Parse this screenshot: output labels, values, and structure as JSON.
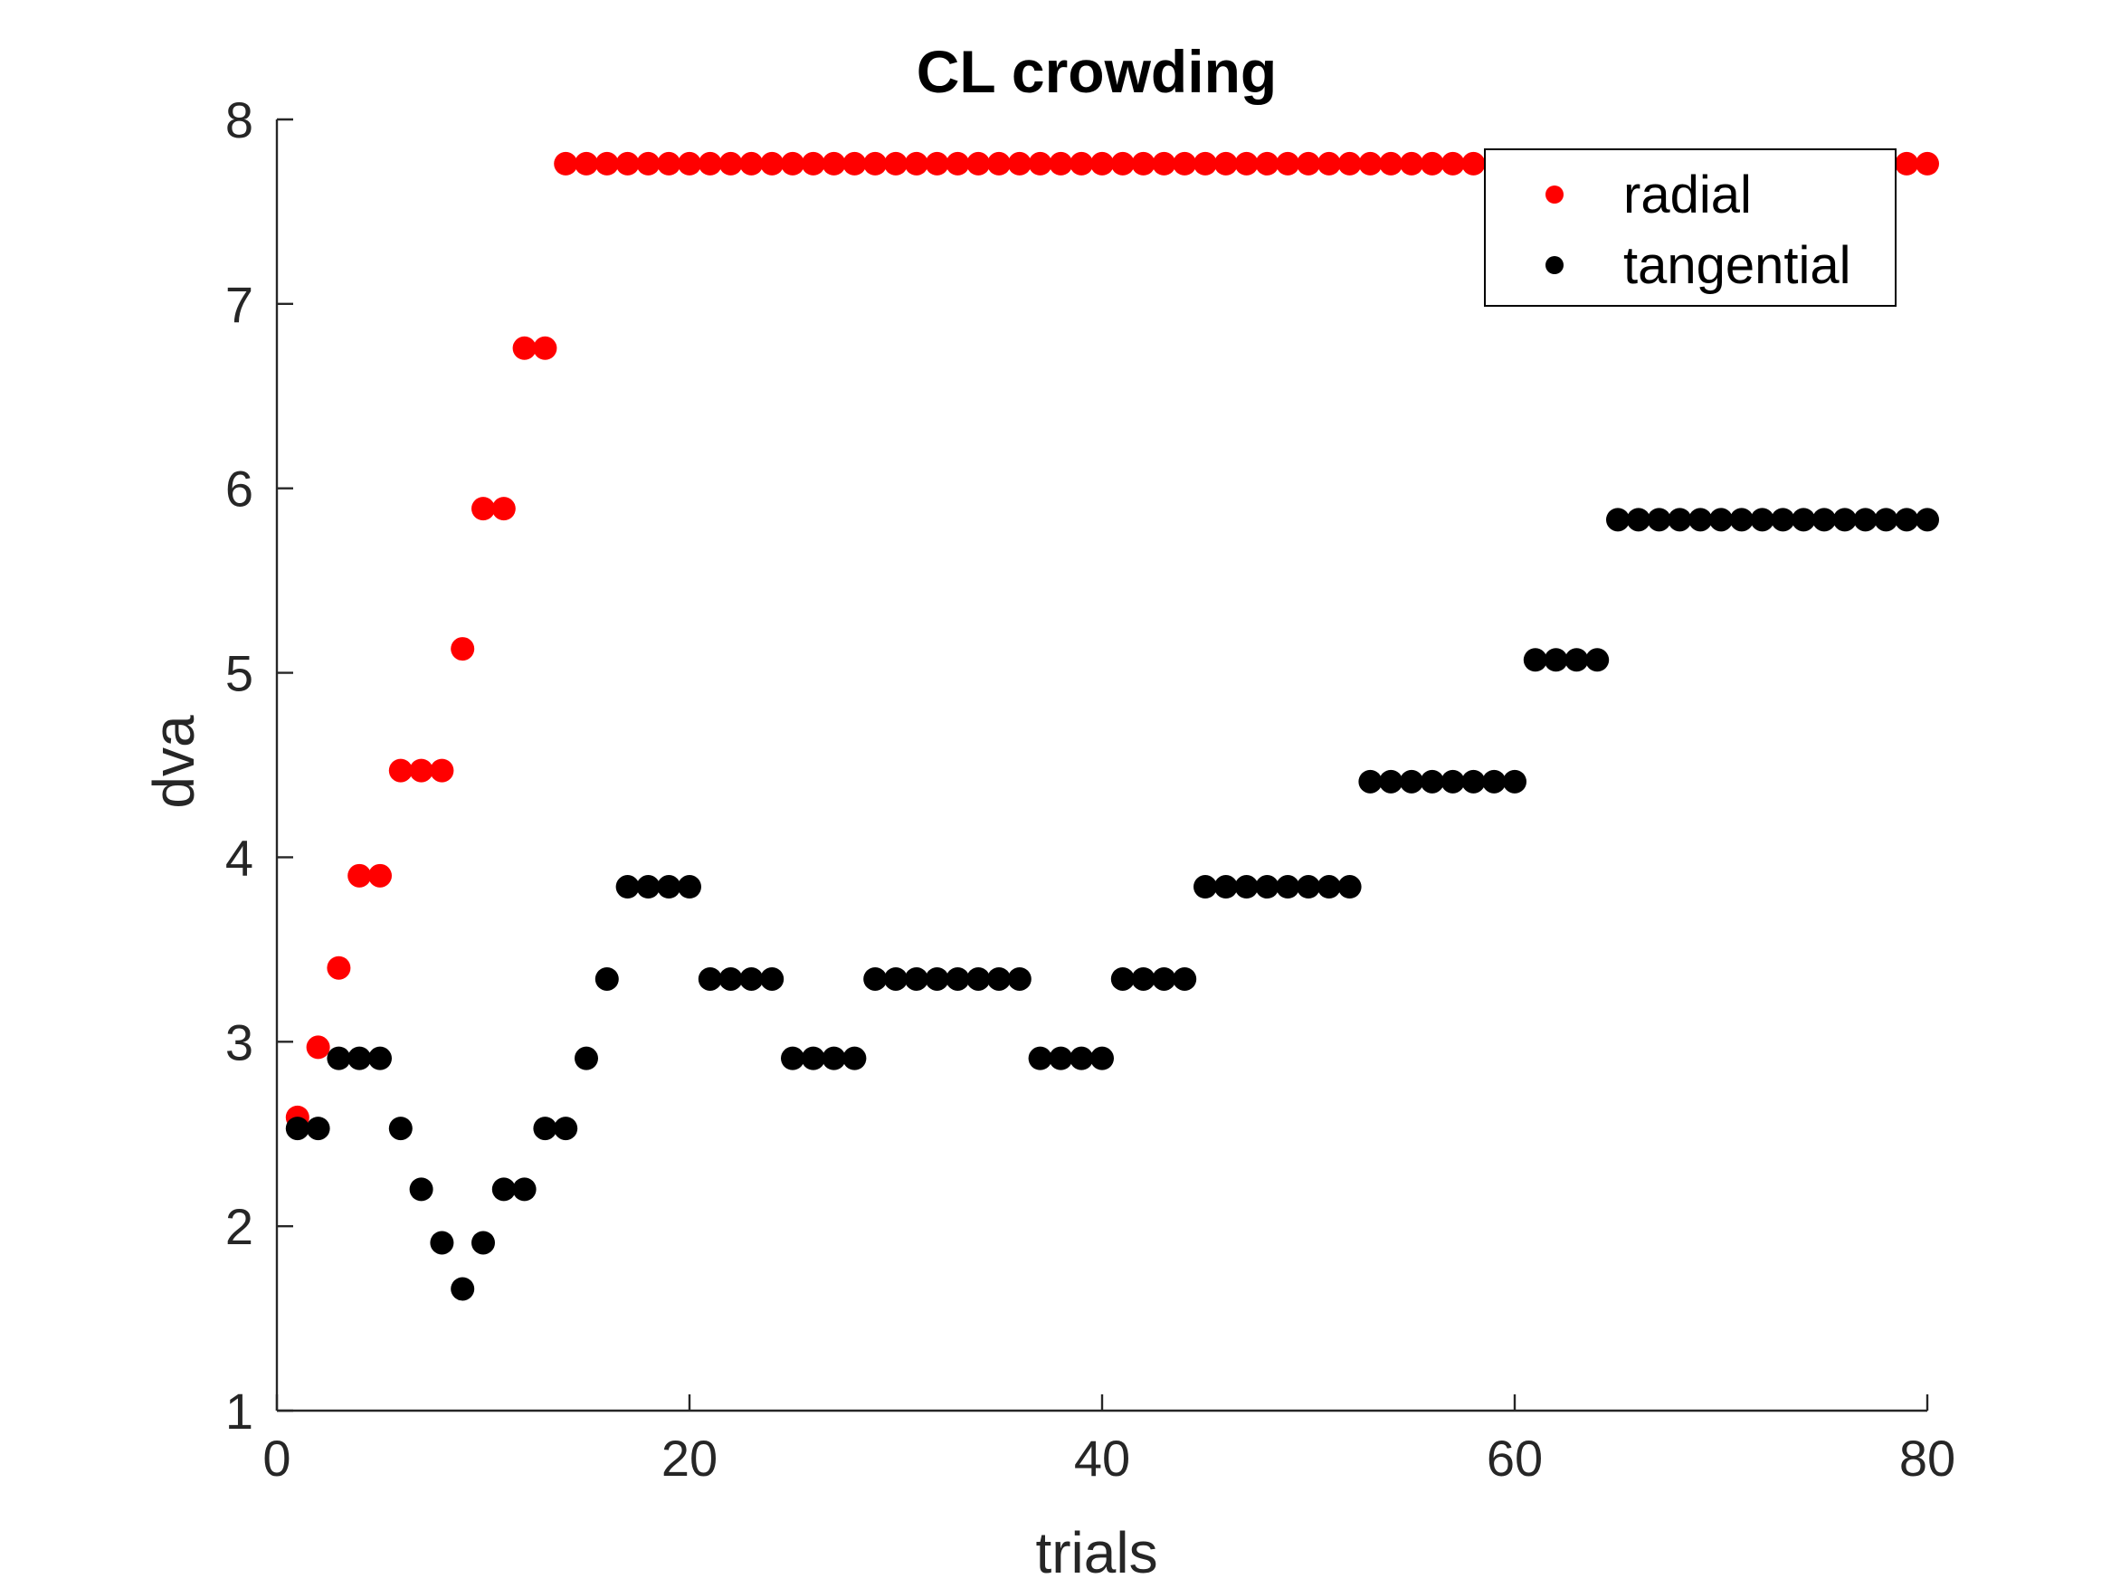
{
  "chart_data": {
    "type": "scatter",
    "title": "CL crowding",
    "xlabel": "trials",
    "ylabel": "dva",
    "xlim": [
      0,
      80
    ],
    "ylim": [
      1,
      8
    ],
    "xticks": [
      0,
      20,
      40,
      60,
      80
    ],
    "yticks": [
      1,
      2,
      3,
      4,
      5,
      6,
      7,
      8
    ],
    "xtick_labels": [
      "0",
      "20",
      "40",
      "60",
      "80"
    ],
    "ytick_labels": [
      "1",
      "2",
      "3",
      "4",
      "5",
      "6",
      "7",
      "8"
    ],
    "grid": false,
    "legend": {
      "position": "top-right",
      "entries": [
        "radial",
        "tangential"
      ]
    },
    "series": [
      {
        "name": "radial",
        "color": "#ff0000",
        "x": [
          1,
          2,
          3,
          4,
          5,
          6,
          7,
          8,
          9,
          10,
          11,
          12,
          13,
          14,
          15,
          16,
          17,
          18,
          19,
          20,
          21,
          22,
          23,
          24,
          25,
          26,
          27,
          28,
          29,
          30,
          31,
          32,
          33,
          34,
          35,
          36,
          37,
          38,
          39,
          40,
          41,
          42,
          43,
          44,
          45,
          46,
          47,
          48,
          49,
          50,
          51,
          52,
          53,
          54,
          55,
          56,
          57,
          58,
          59,
          60,
          61,
          62,
          63,
          64,
          65,
          66,
          67,
          68,
          69,
          70,
          71,
          72,
          73,
          74,
          75,
          76,
          77,
          78,
          79,
          80
        ],
        "y": [
          2.59,
          2.97,
          3.4,
          3.9,
          3.9,
          4.47,
          4.47,
          4.47,
          5.13,
          5.89,
          5.89,
          6.76,
          6.76,
          7.76,
          7.76,
          7.76,
          7.76,
          7.76,
          7.76,
          7.76,
          7.76,
          7.76,
          7.76,
          7.76,
          7.76,
          7.76,
          7.76,
          7.76,
          7.76,
          7.76,
          7.76,
          7.76,
          7.76,
          7.76,
          7.76,
          7.76,
          7.76,
          7.76,
          7.76,
          7.76,
          7.76,
          7.76,
          7.76,
          7.76,
          7.76,
          7.76,
          7.76,
          7.76,
          7.76,
          7.76,
          7.76,
          7.76,
          7.76,
          7.76,
          7.76,
          7.76,
          7.76,
          7.76,
          7.76,
          7.76,
          7.76,
          7.76,
          7.76,
          7.76,
          7.76,
          7.76,
          7.76,
          7.76,
          7.76,
          7.76,
          7.76,
          7.76,
          7.76,
          7.76,
          7.76,
          7.76,
          7.76,
          7.76,
          7.76,
          7.76
        ]
      },
      {
        "name": "tangential",
        "color": "#000000",
        "x": [
          1,
          2,
          3,
          4,
          5,
          6,
          7,
          8,
          9,
          10,
          11,
          12,
          13,
          14,
          15,
          16,
          17,
          18,
          19,
          20,
          21,
          22,
          23,
          24,
          25,
          26,
          27,
          28,
          29,
          30,
          31,
          32,
          33,
          34,
          35,
          36,
          37,
          38,
          39,
          40,
          41,
          42,
          43,
          44,
          45,
          46,
          47,
          48,
          49,
          50,
          51,
          52,
          53,
          54,
          55,
          56,
          57,
          58,
          59,
          60,
          61,
          62,
          63,
          64,
          65,
          66,
          67,
          68,
          69,
          70,
          71,
          72,
          73,
          74,
          75,
          76,
          77,
          78,
          79,
          80
        ],
        "y": [
          2.53,
          2.53,
          2.91,
          2.91,
          2.91,
          2.53,
          2.2,
          1.91,
          1.66,
          1.91,
          2.2,
          2.2,
          2.53,
          2.53,
          2.91,
          3.34,
          3.84,
          3.84,
          3.84,
          3.84,
          3.34,
          3.34,
          3.34,
          3.34,
          2.91,
          2.91,
          2.91,
          2.91,
          3.34,
          3.34,
          3.34,
          3.34,
          3.34,
          3.34,
          3.34,
          3.34,
          2.91,
          2.91,
          2.91,
          2.91,
          3.34,
          3.34,
          3.34,
          3.34,
          3.84,
          3.84,
          3.84,
          3.84,
          3.84,
          3.84,
          3.84,
          3.84,
          4.41,
          4.41,
          4.41,
          4.41,
          4.41,
          4.41,
          4.41,
          4.41,
          5.07,
          5.07,
          5.07,
          5.07,
          5.83,
          5.83,
          5.83,
          5.83,
          5.83,
          5.83,
          5.83,
          5.83,
          5.83,
          5.83,
          5.83,
          5.83,
          5.83,
          5.83,
          5.83,
          5.83
        ]
      }
    ]
  }
}
